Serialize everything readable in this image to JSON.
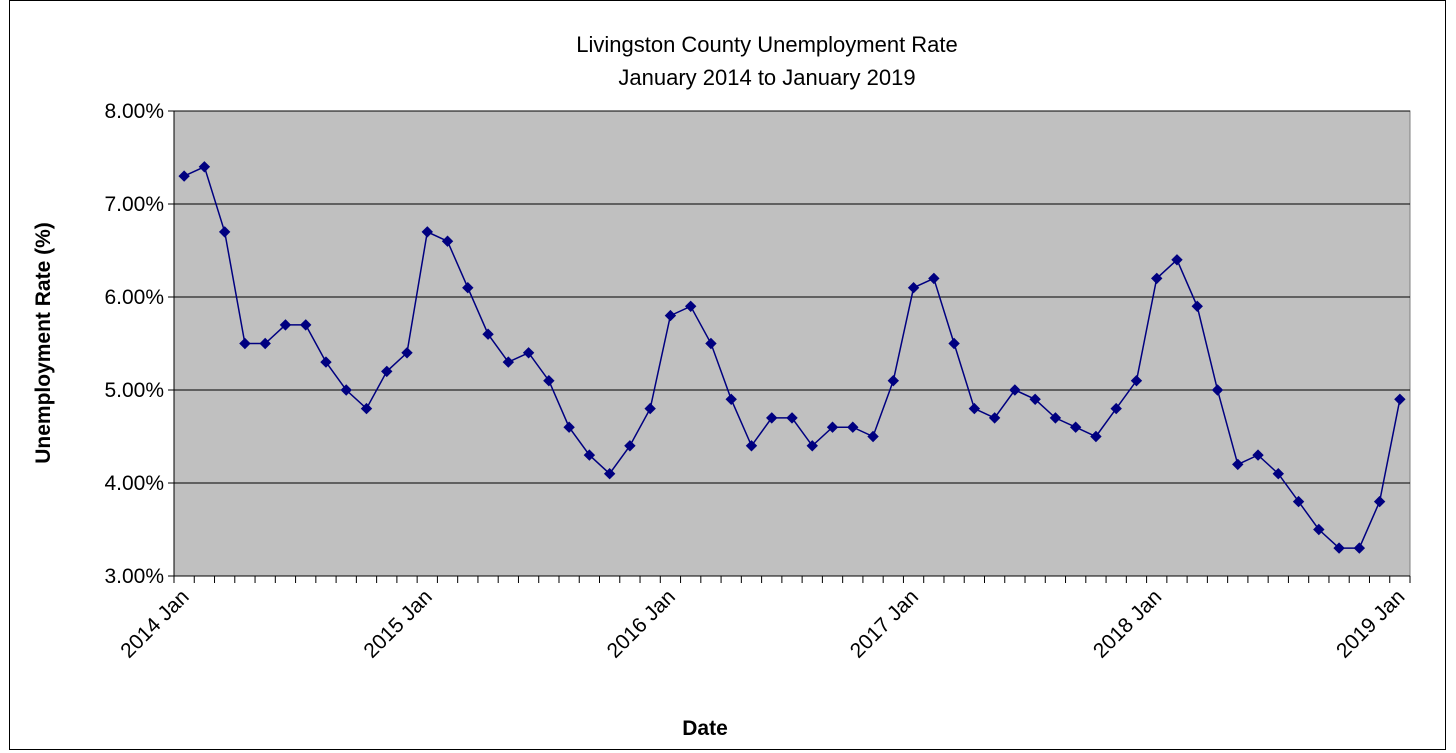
{
  "chart_data": {
    "type": "line",
    "title": "Livingston County Unemployment Rate",
    "subtitle": "January 2014 to January 2019",
    "xlabel": "Date",
    "ylabel": "Unemployment Rate (%)",
    "ylim": [
      3.0,
      8.0
    ],
    "yticks": [
      "3.00%",
      "4.00%",
      "5.00%",
      "6.00%",
      "7.00%",
      "8.00%"
    ],
    "xtick_labels": [
      "2014 Jan",
      "2015 Jan",
      "2016 Jan",
      "2017 Jan",
      "2018 Jan",
      "2019 Jan"
    ],
    "grid": "horizontal",
    "colors": {
      "line": "#000080",
      "marker": "#000080",
      "plot_bg": "#c0c0c0"
    },
    "x": [
      "2014 Jan",
      "2014 Feb",
      "2014 Mar",
      "2014 Apr",
      "2014 May",
      "2014 Jun",
      "2014 Jul",
      "2014 Aug",
      "2014 Sep",
      "2014 Oct",
      "2014 Nov",
      "2014 Dec",
      "2015 Jan",
      "2015 Feb",
      "2015 Mar",
      "2015 Apr",
      "2015 May",
      "2015 Jun",
      "2015 Jul",
      "2015 Aug",
      "2015 Sep",
      "2015 Oct",
      "2015 Nov",
      "2015 Dec",
      "2016 Jan",
      "2016 Feb",
      "2016 Mar",
      "2016 Apr",
      "2016 May",
      "2016 Jun",
      "2016 Jul",
      "2016 Aug",
      "2016 Sep",
      "2016 Oct",
      "2016 Nov",
      "2016 Dec",
      "2017 Jan",
      "2017 Feb",
      "2017 Mar",
      "2017 Apr",
      "2017 May",
      "2017 Jun",
      "2017 Jul",
      "2017 Aug",
      "2017 Sep",
      "2017 Oct",
      "2017 Nov",
      "2017 Dec",
      "2018 Jan",
      "2018 Feb",
      "2018 Mar",
      "2018 Apr",
      "2018 May",
      "2018 Jun",
      "2018 Jul",
      "2018 Aug",
      "2018 Sep",
      "2018 Oct",
      "2018 Nov",
      "2018 Dec",
      "2019 Jan"
    ],
    "values": [
      7.3,
      7.4,
      6.7,
      5.5,
      5.5,
      5.7,
      5.7,
      5.3,
      5.0,
      4.8,
      5.2,
      5.4,
      6.7,
      6.6,
      6.1,
      5.6,
      5.3,
      5.4,
      5.1,
      4.6,
      4.3,
      4.1,
      4.4,
      4.8,
      5.8,
      5.9,
      5.5,
      4.9,
      4.4,
      4.7,
      4.7,
      4.4,
      4.6,
      4.6,
      4.5,
      5.1,
      6.1,
      6.2,
      5.5,
      4.8,
      4.7,
      5.0,
      4.9,
      4.7,
      4.6,
      4.5,
      4.8,
      5.1,
      6.2,
      6.4,
      5.9,
      5.0,
      4.2,
      4.3,
      4.1,
      3.8,
      3.5,
      3.3,
      3.3,
      3.8,
      4.9
    ]
  }
}
